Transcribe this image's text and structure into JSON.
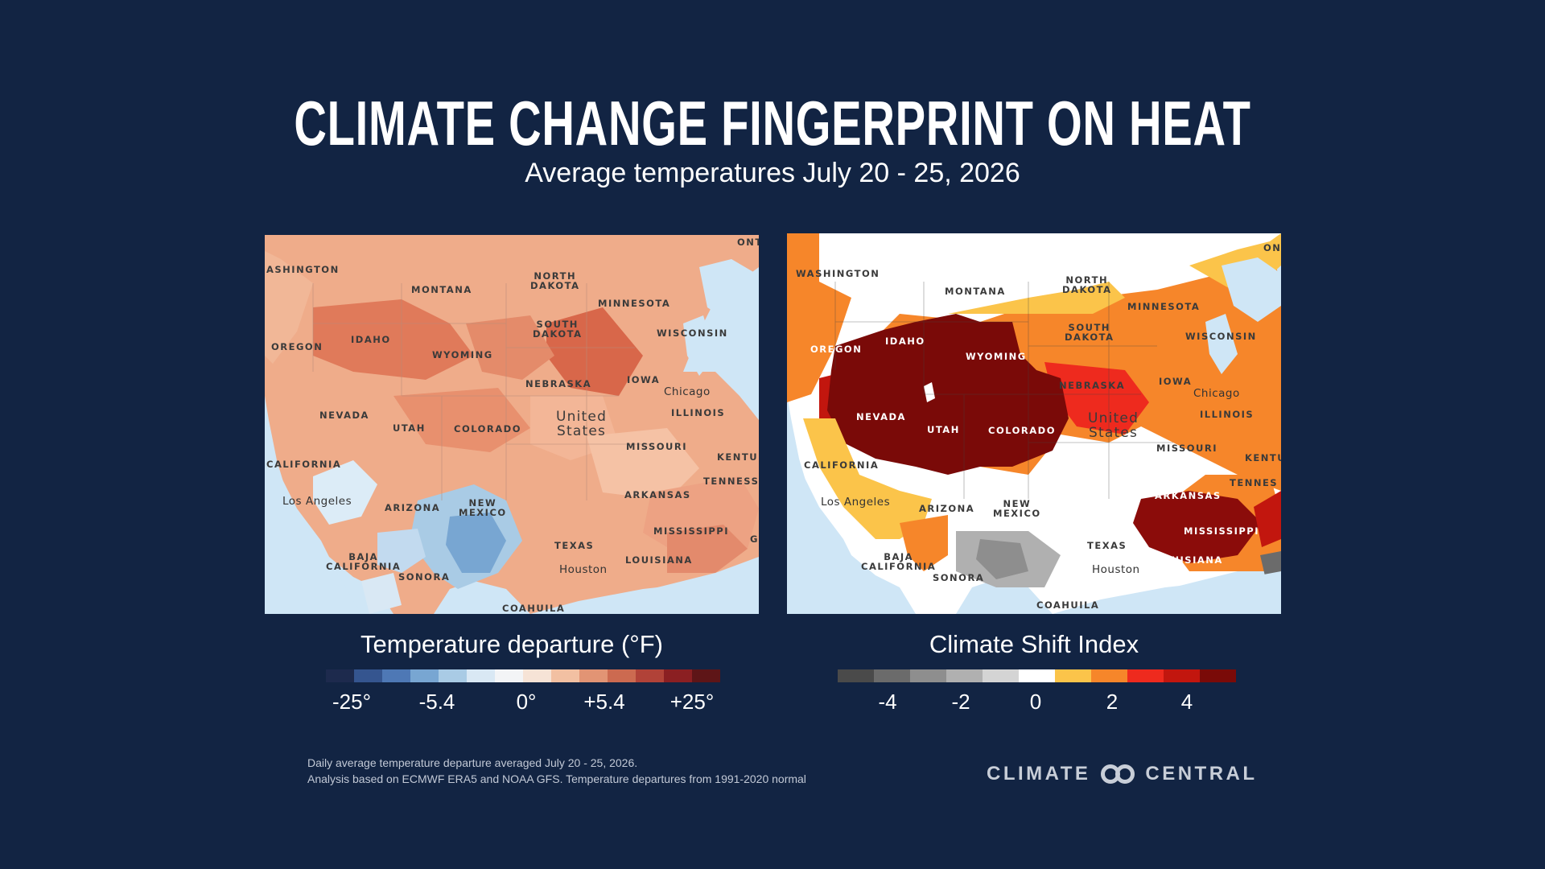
{
  "header": {
    "title": "CLIMATE CHANGE FINGERPRINT ON HEAT",
    "subtitle": "Average temperatures July 20 - 25, 2026"
  },
  "maps": {
    "left": {
      "labels": {
        "washington": "ASHINGTON",
        "montana": "MONTANA",
        "north_dakota": "NORTH\nDAKOTA",
        "minnesota": "MINNESOTA",
        "south_dakota": "SOUTH\nDAKOTA",
        "wisconsin": "WISCONSIN",
        "oregon": "OREGON",
        "idaho": "IDAHO",
        "wyoming": "WYOMING",
        "nebraska": "NEBRASKA",
        "iowa": "IOWA",
        "chicago": "Chicago",
        "nevada": "NEVADA",
        "utah": "UTAH",
        "colorado": "COLORADO",
        "united_states": "United\nStates",
        "illinois": "ILLINOIS",
        "missouri": "MISSOURI",
        "california": "CALIFORNIA",
        "kentucky": "KENTU",
        "tennessee": "TENNESS",
        "los_angeles": "Los Angeles",
        "arizona": "ARIZONA",
        "new_mexico": "NEW\nMEXICO",
        "arkansas": "ARKANSAS",
        "mississippi": "MISSISSIPPI",
        "texas": "TEXAS",
        "baja": "BAJA\nCALIFORNIA",
        "sonora": "SONORA",
        "houston": "Houston",
        "louisiana": "LOUISIANA",
        "coahuila": "COAHUILA",
        "ontario": "ONT",
        "g": "G"
      }
    },
    "right": {
      "labels": {
        "washington": "WASHINGTON",
        "montana": "MONTANA",
        "north_dakota": "NORTH\nDAKOTA",
        "minnesota": "MINNESOTA",
        "south_dakota": "SOUTH\nDAKOTA",
        "wisconsin": "WISCONSIN",
        "oregon": "OREGON",
        "idaho": "IDAHO",
        "wyoming": "WYOMING",
        "nebraska": "NEBRASKA",
        "iowa": "IOWA",
        "chicago": "Chicago",
        "nevada": "NEVADA",
        "utah": "UTAH",
        "colorado": "COLORADO",
        "united_states": "United\nStates",
        "illinois": "ILLINOIS",
        "missouri": "MISSOURI",
        "california": "CALIFORNIA",
        "kentucky": "KENTU",
        "tennessee": "TENNES",
        "los_angeles": "Los Angeles",
        "arizona": "ARIZONA",
        "new_mexico": "NEW\nMEXICO",
        "arkansas": "ARKANSAS",
        "mississippi": "MISSISSIPPI",
        "texas": "TEXAS",
        "baja": "BAJA\nCALIFORNIA",
        "sonora": "SONORA",
        "houston": "Houston",
        "louisiana": "LOUISIANA",
        "coahuila": "COAHUILA",
        "ontario": "ON"
      }
    }
  },
  "legends": {
    "left": {
      "title": "Temperature departure (°F)",
      "colors": [
        "#1d2a4d",
        "#35558f",
        "#4e78b5",
        "#78a6d2",
        "#a9cbe5",
        "#d9e8f4",
        "#f3f4f6",
        "#f6e3d6",
        "#f2c0a2",
        "#e29474",
        "#cc6a50",
        "#b14238",
        "#8b1f22",
        "#5e1517"
      ],
      "ticks": [
        "-25°",
        "-5.4",
        "0°",
        "+5.4",
        "+25°"
      ]
    },
    "right": {
      "title": "Climate Shift Index",
      "colors": [
        "#4a4a4a",
        "#6b6b6b",
        "#8e8e8e",
        "#b0b0b0",
        "#d4d4d4",
        "#ffffff",
        "#fbc44a",
        "#f6862a",
        "#ee2a1e",
        "#c2160e",
        "#7a0a08"
      ],
      "ticks": [
        "-4",
        "-2",
        "0",
        "2",
        "4"
      ]
    }
  },
  "footer": {
    "note_line1": "Daily average temperature departure averaged July 20 - 25, 2026.",
    "note_line2": "Analysis based on ECMWF ERA5 and NOAA GFS. Temperature departures from 1991-2020 normal",
    "brand_left": "CLIMATE",
    "brand_right": "CENTRAL"
  }
}
